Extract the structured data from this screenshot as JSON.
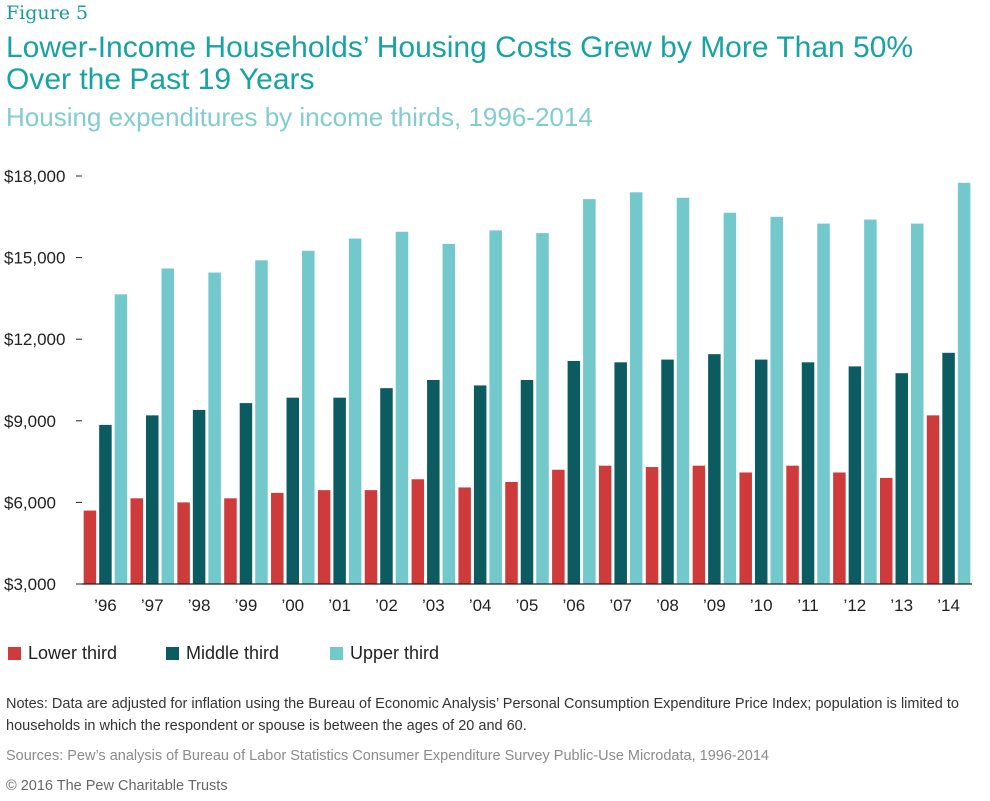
{
  "header": {
    "figure_label": "Figure 5",
    "title": "Lower-Income Households’ Housing Costs Grew by More Than 50% Over the Past 19 Years",
    "subtitle": "Housing expenditures by income thirds, 1996-2014"
  },
  "footer": {
    "notes": "Notes: Data are adjusted for inflation using the Bureau of Economic Analysis’ Personal Consumption Expenditure Price Index; population is limited to households in which the respondent or spouse is between the ages of 20 and 60.",
    "sources": "Sources: Pew’s analysis of Bureau of Labor Statistics Consumer Expenditure Survey Public-Use Microdata, 1996-2014",
    "copyright": "© 2016 The Pew Charitable Trusts"
  },
  "chart_data": {
    "type": "bar",
    "title": "Lower-Income Households’ Housing Costs Grew by More Than 50% Over the Past 19 Years",
    "subtitle": "Housing expenditures by income thirds, 1996-2014",
    "xlabel": "",
    "ylabel": "",
    "ylim": [
      3000,
      18000
    ],
    "yticks": [
      3000,
      6000,
      9000,
      12000,
      15000,
      18000
    ],
    "ytick_labels": [
      "$3,000",
      "$6,000",
      "$9,000",
      "$12,000",
      "$15,000",
      "$18,000"
    ],
    "grid": false,
    "legend_position": "bottom-left",
    "categories": [
      "’96",
      "’97",
      "’98",
      "’99",
      "’00",
      "’01",
      "’02",
      "’03",
      "’04",
      "’05",
      "’06",
      "’07",
      "’08",
      "’09",
      "’10",
      "’11",
      "’12",
      "’13",
      "’14"
    ],
    "series": [
      {
        "name": "Lower third",
        "color": "#cf3a3a",
        "values": [
          5700,
          6150,
          6000,
          6150,
          6350,
          6450,
          6450,
          6850,
          6550,
          6750,
          7200,
          7350,
          7300,
          7350,
          7100,
          7350,
          7100,
          6900,
          9200
        ]
      },
      {
        "name": "Middle third",
        "color": "#0b5b60",
        "values": [
          8850,
          9200,
          9400,
          9650,
          9850,
          9850,
          10200,
          10500,
          10300,
          10500,
          11200,
          11150,
          11250,
          11450,
          11250,
          11150,
          11000,
          10750,
          11500
        ]
      },
      {
        "name": "Upper third",
        "color": "#73c8cc",
        "values": [
          13650,
          14600,
          14450,
          14900,
          15250,
          15700,
          15950,
          15500,
          16000,
          15900,
          17150,
          17400,
          17200,
          16650,
          16500,
          16250,
          16400,
          16250,
          17750
        ]
      }
    ]
  }
}
